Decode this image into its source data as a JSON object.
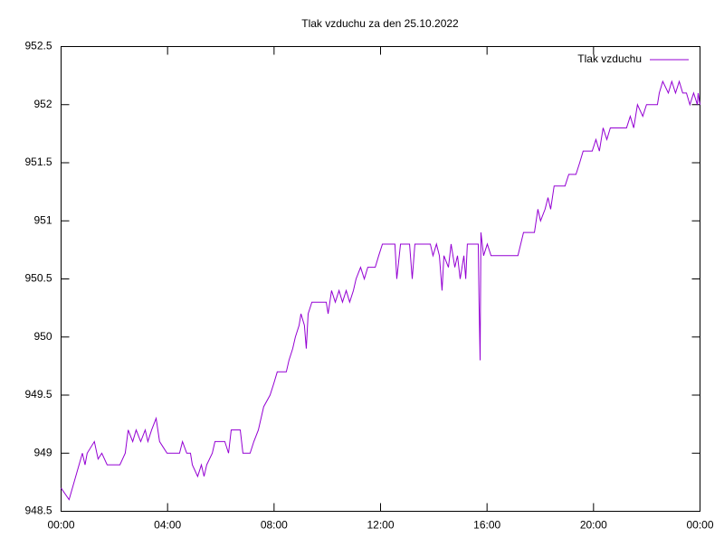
{
  "chart_data": {
    "type": "line",
    "title": "Tlak vzduchu za den 25.10.2022",
    "x": [
      0,
      0.3,
      0.8,
      0.9,
      0.98,
      1.25,
      1.39,
      1.53,
      1.73,
      2.21,
      2.41,
      2.52,
      2.69,
      2.82,
      2.99,
      3.16,
      3.26,
      3.4,
      3.57,
      3.7,
      3.84,
      3.98,
      4.45,
      4.56,
      4.72,
      4.86,
      4.93,
      5.13,
      5.27,
      5.37,
      5.47,
      5.68,
      5.78,
      6.15,
      6.29,
      6.39,
      6.73,
      6.83,
      7.1,
      7.24,
      7.41,
      7.61,
      7.85,
      7.99,
      8.12,
      8.46,
      8.56,
      8.7,
      8.8,
      8.94,
      9.01,
      9.14,
      9.21,
      9.28,
      9.42,
      9.96,
      10.03,
      10.16,
      10.3,
      10.44,
      10.57,
      10.71,
      10.84,
      10.98,
      11.08,
      11.25,
      11.39,
      11.52,
      11.8,
      11.93,
      12.07,
      12.54,
      12.61,
      12.75,
      13.09,
      13.19,
      13.29,
      13.87,
      13.97,
      14.1,
      14.21,
      14.31,
      14.38,
      14.55,
      14.65,
      14.79,
      14.89,
      14.99,
      15.13,
      15.2,
      15.26,
      15.67,
      15.7,
      15.74,
      15.77,
      15.87,
      16.01,
      16.15,
      17.16,
      17.37,
      17.78,
      17.91,
      18.01,
      18.18,
      18.29,
      18.39,
      18.52,
      18.93,
      19.07,
      19.34,
      19.48,
      19.61,
      19.95,
      20.09,
      20.22,
      20.36,
      20.5,
      20.63,
      21.24,
      21.38,
      21.51,
      21.65,
      21.85,
      21.99,
      22.4,
      22.47,
      22.6,
      22.81,
      22.94,
      23.08,
      23.22,
      23.35,
      23.49,
      23.62,
      23.76,
      23.9,
      23.93,
      24
    ],
    "series": [
      {
        "name": "Tlak vzduchu",
        "color": "#9400d3",
        "values": [
          948.7,
          948.6,
          949.0,
          948.9,
          949.0,
          949.1,
          948.95,
          949.0,
          948.9,
          948.9,
          949.0,
          949.2,
          949.1,
          949.2,
          949.1,
          949.2,
          949.1,
          949.2,
          949.3,
          949.1,
          949.05,
          949.0,
          949.0,
          949.1,
          949.0,
          949.0,
          948.9,
          948.8,
          948.9,
          948.8,
          948.9,
          949.0,
          949.1,
          949.1,
          949.0,
          949.2,
          949.2,
          949.0,
          949.0,
          949.1,
          949.2,
          949.4,
          949.5,
          949.6,
          949.7,
          949.7,
          949.8,
          949.9,
          950.0,
          950.1,
          950.2,
          950.1,
          949.9,
          950.2,
          950.3,
          950.3,
          950.2,
          950.4,
          950.3,
          950.4,
          950.3,
          950.4,
          950.3,
          950.4,
          950.5,
          950.6,
          950.5,
          950.6,
          950.6,
          950.7,
          950.8,
          950.8,
          950.5,
          950.8,
          950.8,
          950.5,
          950.8,
          950.8,
          950.7,
          950.8,
          950.7,
          950.4,
          950.7,
          950.6,
          950.8,
          950.6,
          950.7,
          950.5,
          950.7,
          950.5,
          950.8,
          950.8,
          950.3,
          949.8,
          950.9,
          950.7,
          950.8,
          950.7,
          950.7,
          950.9,
          950.9,
          951.1,
          951.0,
          951.1,
          951.2,
          951.1,
          951.3,
          951.3,
          951.4,
          951.4,
          951.5,
          951.6,
          951.6,
          951.7,
          951.6,
          951.8,
          951.7,
          951.8,
          951.8,
          951.9,
          951.8,
          952.0,
          951.9,
          952.0,
          952.0,
          952.1,
          952.2,
          952.1,
          952.2,
          952.1,
          952.2,
          952.1,
          952.1,
          952.0,
          952.1,
          952.0,
          952.1,
          952.0
        ]
      }
    ],
    "xlim": [
      0,
      24
    ],
    "xticks": [
      {
        "value": 0,
        "label": "00:00"
      },
      {
        "value": 4,
        "label": "04:00"
      },
      {
        "value": 8,
        "label": "08:00"
      },
      {
        "value": 12,
        "label": "12:00"
      },
      {
        "value": 16,
        "label": "16:00"
      },
      {
        "value": 20,
        "label": "20:00"
      },
      {
        "value": 24,
        "label": "00:00"
      }
    ],
    "ylim": [
      948.5,
      952.5
    ],
    "yticks": [
      948.5,
      949,
      949.5,
      950,
      950.5,
      951,
      951.5,
      952,
      952.5
    ],
    "legend": "top-right"
  }
}
